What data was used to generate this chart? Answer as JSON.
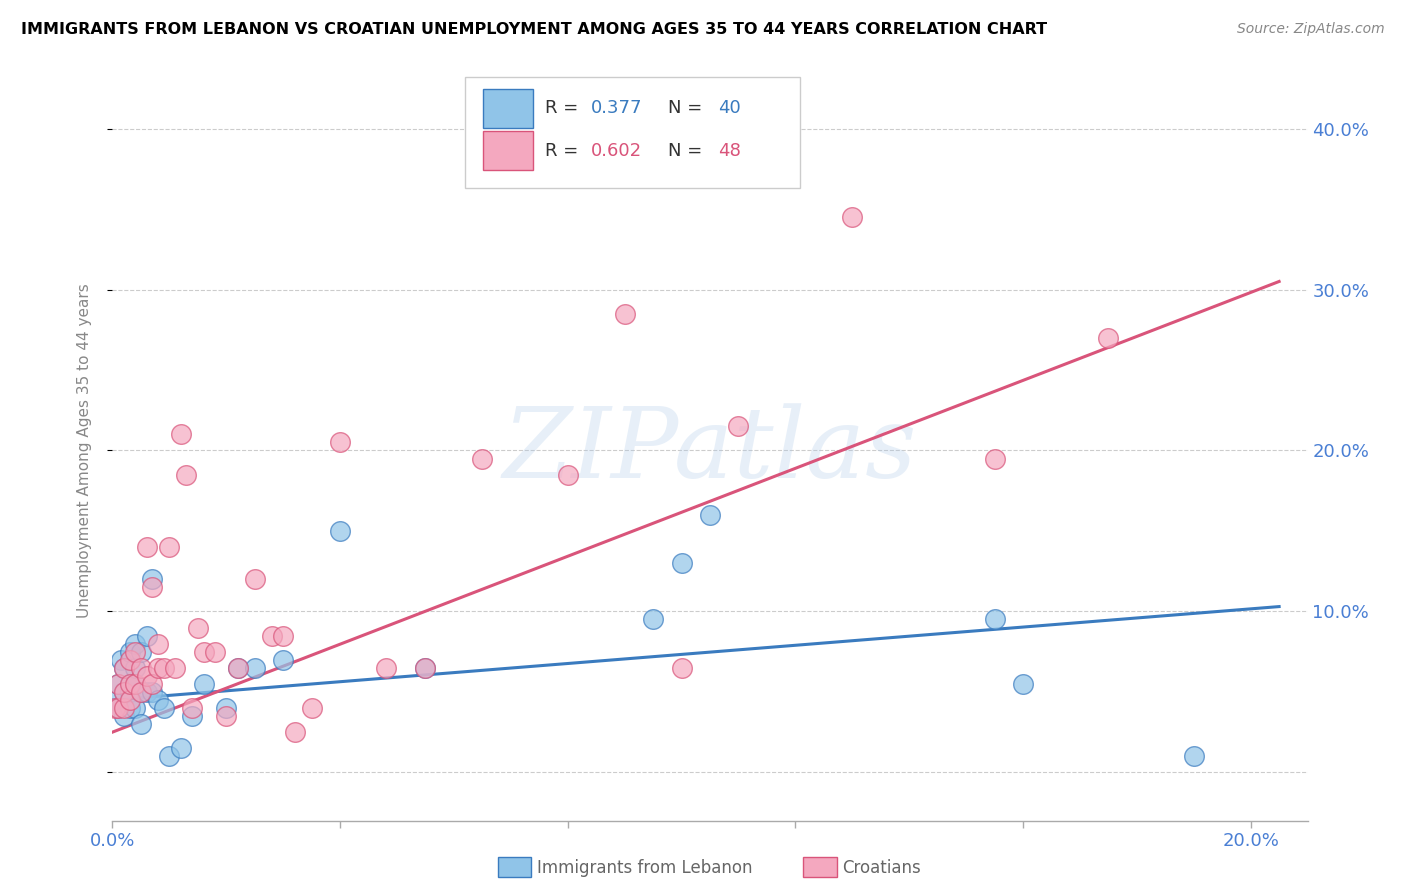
{
  "title": "IMMIGRANTS FROM LEBANON VS CROATIAN UNEMPLOYMENT AMONG AGES 35 TO 44 YEARS CORRELATION CHART",
  "source": "Source: ZipAtlas.com",
  "ylabel": "Unemployment Among Ages 35 to 44 years",
  "xlim": [
    0.0,
    0.21
  ],
  "ylim": [
    -0.03,
    0.43
  ],
  "y_ticks": [
    0.0,
    0.1,
    0.2,
    0.3,
    0.4
  ],
  "y_tick_labels": [
    "",
    "10.0%",
    "20.0%",
    "30.0%",
    "40.0%"
  ],
  "x_ticks": [
    0.0,
    0.04,
    0.08,
    0.12,
    0.16,
    0.2
  ],
  "x_tick_labels": [
    "0.0%",
    "",
    "",
    "",
    "",
    "20.0%"
  ],
  "blue_color": "#90c4e8",
  "pink_color": "#f4a8bf",
  "blue_edge_color": "#3a7bbf",
  "pink_edge_color": "#d9547a",
  "blue_line_color": "#3a7bbf",
  "pink_line_color": "#d9547a",
  "tick_label_color": "#4a7fd4",
  "watermark": "ZIPatlas",
  "blue_scatter_x": [
    0.0005,
    0.001,
    0.001,
    0.0015,
    0.002,
    0.002,
    0.002,
    0.003,
    0.003,
    0.003,
    0.003,
    0.004,
    0.004,
    0.004,
    0.004,
    0.005,
    0.005,
    0.005,
    0.006,
    0.006,
    0.007,
    0.007,
    0.008,
    0.009,
    0.01,
    0.012,
    0.014,
    0.016,
    0.02,
    0.022,
    0.025,
    0.03,
    0.04,
    0.055,
    0.095,
    0.1,
    0.105,
    0.155,
    0.16,
    0.19
  ],
  "blue_scatter_y": [
    0.045,
    0.04,
    0.055,
    0.07,
    0.035,
    0.05,
    0.065,
    0.04,
    0.05,
    0.055,
    0.075,
    0.04,
    0.055,
    0.065,
    0.08,
    0.03,
    0.05,
    0.075,
    0.05,
    0.085,
    0.05,
    0.12,
    0.045,
    0.04,
    0.01,
    0.015,
    0.035,
    0.055,
    0.04,
    0.065,
    0.065,
    0.07,
    0.15,
    0.065,
    0.095,
    0.13,
    0.16,
    0.095,
    0.055,
    0.01
  ],
  "pink_scatter_x": [
    0.0005,
    0.001,
    0.001,
    0.002,
    0.002,
    0.002,
    0.003,
    0.003,
    0.003,
    0.004,
    0.004,
    0.005,
    0.005,
    0.006,
    0.006,
    0.007,
    0.007,
    0.008,
    0.008,
    0.009,
    0.01,
    0.011,
    0.012,
    0.013,
    0.014,
    0.015,
    0.016,
    0.018,
    0.02,
    0.022,
    0.025,
    0.028,
    0.03,
    0.032,
    0.035,
    0.04,
    0.048,
    0.055,
    0.065,
    0.08,
    0.09,
    0.1,
    0.11,
    0.13,
    0.155,
    0.175
  ],
  "pink_scatter_y": [
    0.04,
    0.04,
    0.055,
    0.04,
    0.05,
    0.065,
    0.045,
    0.055,
    0.07,
    0.055,
    0.075,
    0.05,
    0.065,
    0.06,
    0.14,
    0.055,
    0.115,
    0.065,
    0.08,
    0.065,
    0.14,
    0.065,
    0.21,
    0.185,
    0.04,
    0.09,
    0.075,
    0.075,
    0.035,
    0.065,
    0.12,
    0.085,
    0.085,
    0.025,
    0.04,
    0.205,
    0.065,
    0.065,
    0.195,
    0.185,
    0.285,
    0.065,
    0.215,
    0.345,
    0.195,
    0.27
  ],
  "blue_line_x": [
    0.0,
    0.205
  ],
  "blue_line_y": [
    0.045,
    0.103
  ],
  "pink_line_x": [
    0.0,
    0.205
  ],
  "pink_line_y": [
    0.025,
    0.305
  ]
}
